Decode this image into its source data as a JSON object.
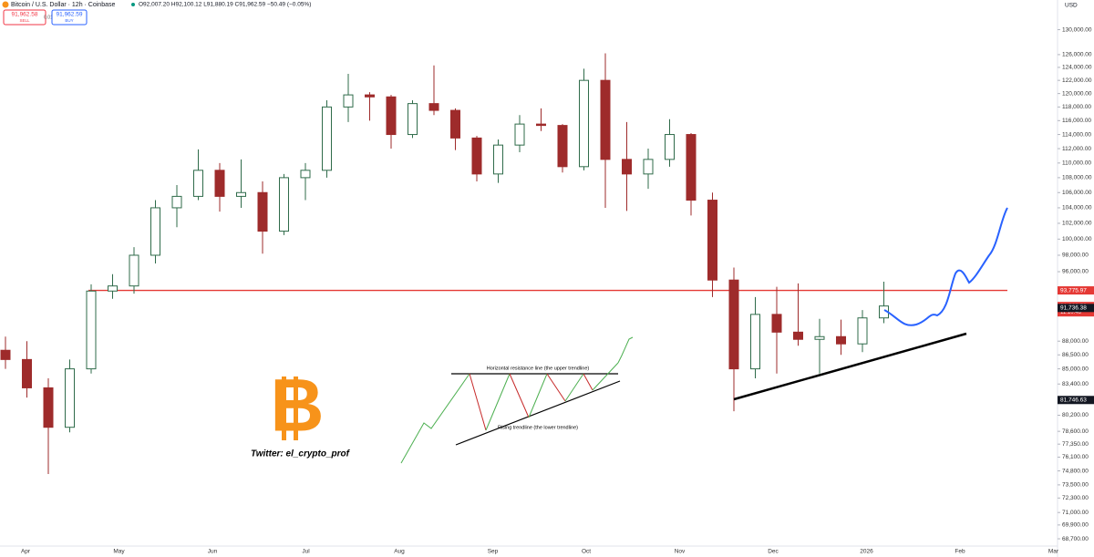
{
  "header": {
    "symbol": "Bitcoin / U.S. Dollar · 12h · Coinbase",
    "ohlc": "O92,007.20 H92,100.12 L91,880.19 C91,962.59 −50.49 (−0.05%)",
    "sell_price": "91,962.58",
    "sell": "SELL",
    "spread": "0.01",
    "buy_price": "91,962.59",
    "buy": "BUY",
    "currency": "USD"
  },
  "chart_data": {
    "type": "candlestick",
    "log_scale": true,
    "up_color": "#2f6b4a",
    "down_color": "#9e2b2b",
    "ylim": [
      68000,
      134000
    ],
    "yticks": [
      {
        "value": 130000,
        "label": "130,000.00"
      },
      {
        "value": 126000,
        "label": "126,000.00"
      },
      {
        "value": 124000,
        "label": "124,000.00"
      },
      {
        "value": 122000,
        "label": "122,000.00"
      },
      {
        "value": 120000,
        "label": "120,000.00"
      },
      {
        "value": 118000,
        "label": "118,000.00"
      },
      {
        "value": 116000,
        "label": "116,000.00"
      },
      {
        "value": 114000,
        "label": "114,000.00"
      },
      {
        "value": 112000,
        "label": "112,000.00"
      },
      {
        "value": 110000,
        "label": "110,000.00"
      },
      {
        "value": 108000,
        "label": "108,000.00"
      },
      {
        "value": 106000,
        "label": "106,000.00"
      },
      {
        "value": 104000,
        "label": "104,000.00"
      },
      {
        "value": 102000,
        "label": "102,000.00"
      },
      {
        "value": 100000,
        "label": "100,000.00"
      },
      {
        "value": 98000,
        "label": "98,000.00"
      },
      {
        "value": 96000,
        "label": "96,000.00"
      },
      {
        "value": 88000,
        "label": "88,000.00"
      },
      {
        "value": 86500,
        "label": "86,500.00"
      },
      {
        "value": 85000,
        "label": "85,000.00"
      },
      {
        "value": 83400,
        "label": "83,400.00"
      },
      {
        "value": 80200,
        "label": "80,200.00"
      },
      {
        "value": 78600,
        "label": "78,600.00"
      },
      {
        "value": 77350,
        "label": "77,350.00"
      },
      {
        "value": 76100,
        "label": "76,100.00"
      },
      {
        "value": 74800,
        "label": "74,800.00"
      },
      {
        "value": 73500,
        "label": "73,500.00"
      },
      {
        "value": 72300,
        "label": "72,300.00"
      },
      {
        "value": 71000,
        "label": "71,000.00"
      },
      {
        "value": 69900,
        "label": "69,900.00"
      },
      {
        "value": 68700,
        "label": "68,700.00"
      }
    ],
    "x_labels": [
      "Apr",
      "May",
      "Jun",
      "Jul",
      "Aug",
      "Sep",
      "Oct",
      "Nov",
      "Dec",
      "2026",
      "Feb",
      "Mar"
    ],
    "open": [
      87000,
      86000,
      83000,
      79000,
      85000,
      93700,
      94300,
      98000,
      104000,
      105500,
      109000,
      105500,
      106000,
      101000,
      108000,
      109000,
      118000,
      119800,
      119500,
      114000,
      118500,
      117500,
      113500,
      108500,
      112500,
      115500,
      115300,
      109500,
      122000,
      110500,
      108500,
      110500,
      114000,
      105000,
      95000,
      85000,
      91000,
      89000,
      88200,
      88500,
      87700,
      90600
    ],
    "high": [
      88500,
      88000,
      84000,
      86000,
      94500,
      95700,
      99000,
      105000,
      107000,
      111900,
      110000,
      110500,
      107500,
      108500,
      110000,
      119000,
      123000,
      120200,
      119800,
      119000,
      124300,
      117800,
      113800,
      113300,
      116800,
      117800,
      115500,
      123800,
      126200,
      115800,
      112000,
      116200,
      114200,
      106000,
      96500,
      93000,
      94200,
      94600,
      90500,
      90400,
      91500,
      94800
    ],
    "low": [
      85000,
      82000,
      74500,
      78500,
      84500,
      92800,
      93400,
      97000,
      101500,
      105000,
      103500,
      104000,
      98200,
      100500,
      105000,
      108000,
      115800,
      116000,
      112000,
      113500,
      116800,
      111800,
      107500,
      107300,
      111500,
      114500,
      108700,
      109000,
      104000,
      103600,
      106500,
      109500,
      103000,
      93000,
      80600,
      84000,
      84500,
      87500,
      84500,
      86500,
      86800,
      90000
    ],
    "close": [
      86000,
      83000,
      79000,
      85000,
      93700,
      94300,
      98000,
      104000,
      105500,
      109000,
      105500,
      106000,
      101000,
      108000,
      109000,
      118000,
      119800,
      119500,
      114000,
      118500,
      117500,
      113500,
      108500,
      112500,
      115500,
      115300,
      109500,
      122000,
      110500,
      108500,
      110500,
      114000,
      105000,
      95000,
      85000,
      91000,
      89000,
      88200,
      88500,
      87700,
      90600,
      91962.59
    ],
    "price_labels": [
      {
        "value": 93775.97,
        "label": "93,775.97",
        "color": "#e53935"
      },
      {
        "value": 91962.59,
        "label": "91,962.59",
        "color": "#e53935"
      },
      {
        "value": 91736.38,
        "label": "91,736.38",
        "color": "#131722"
      },
      {
        "value": 81746.63,
        "label": "81,746.63",
        "color": "#131722"
      }
    ],
    "countdown": "11:10:48",
    "resistance": {
      "value": 93775.97,
      "color": "#e53935"
    }
  },
  "annotations": {
    "upper_line": "Horizontal resistance line (the upper trendline)",
    "lower_line": "Rising trendline (the lower trendline)",
    "logo": "B",
    "twitter": "Twitter: el_crypto_prof"
  }
}
